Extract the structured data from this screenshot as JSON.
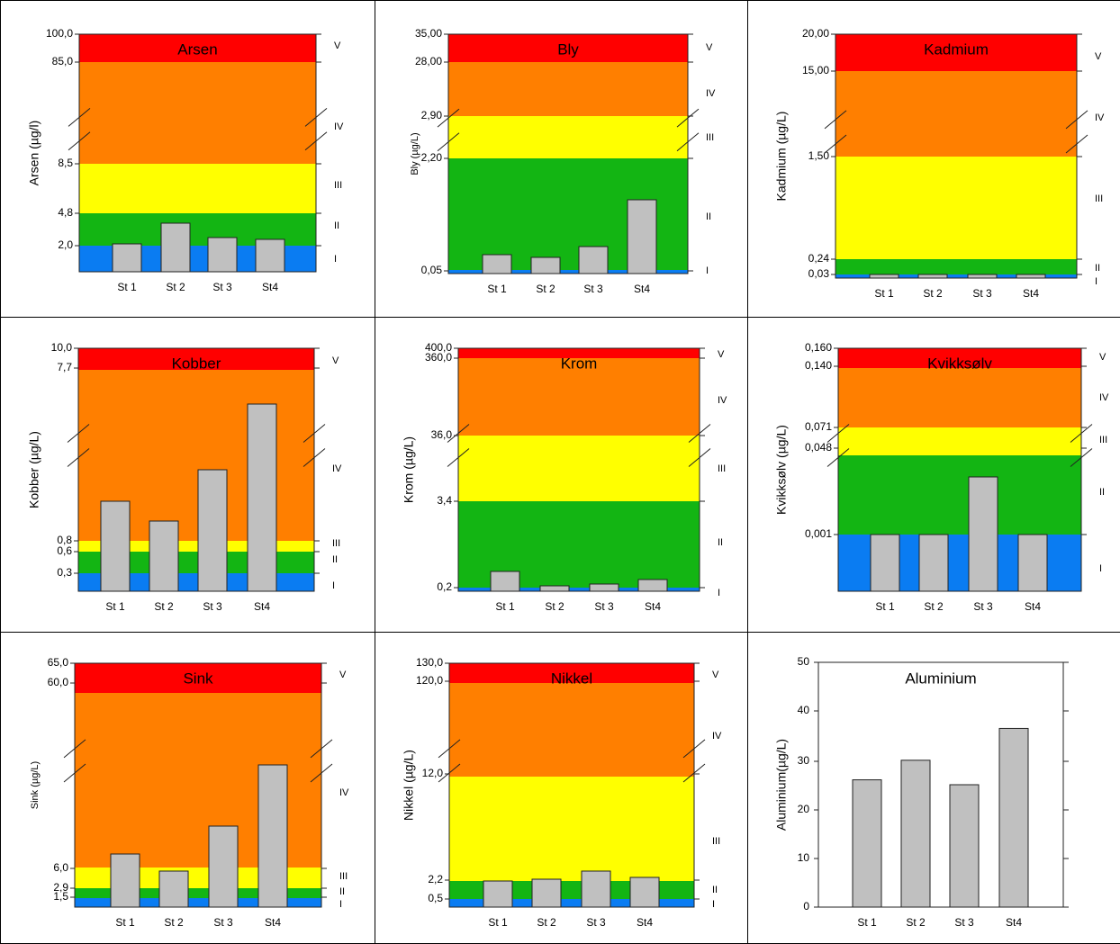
{
  "colors": {
    "I": "#0a7cf2",
    "II": "#13b513",
    "III": "#ffff00",
    "IV": "#ff7f00",
    "V": "#ff0000",
    "bar": "#c0c0c0",
    "bar_stroke": "#222222"
  },
  "categories": [
    "St 1",
    "St 2",
    "St 3",
    "St4"
  ],
  "chart_data": [
    {
      "type": "bar",
      "title": "Arsen",
      "ylabel": "Arsen (µg/l)",
      "categories": [
        "St 1",
        "St 2",
        "St 3",
        "St4"
      ],
      "ticks": [
        "100,0",
        "85,0",
        "8,5",
        "4,8",
        "2,0"
      ],
      "classes": [
        "V",
        "IV",
        "III",
        "II",
        "I"
      ],
      "class_limits": {
        "I": [
          0,
          2.0
        ],
        "II": [
          2.0,
          4.8
        ],
        "III": [
          4.8,
          8.5
        ],
        "IV": [
          8.5,
          85.0
        ],
        "V": [
          85.0,
          100.0
        ]
      },
      "values": [
        2.2,
        3.8,
        2.7,
        2.5
      ],
      "axis_breaks": true
    },
    {
      "type": "bar",
      "title": "Bly",
      "ylabel": "Bly (µg/L)",
      "categories": [
        "St 1",
        "St 2",
        "St 3",
        "St4"
      ],
      "ticks": [
        "35,00",
        "28,00",
        "2,90",
        "2,20",
        "0,05"
      ],
      "classes": [
        "V",
        "IV",
        "III",
        "II",
        "I"
      ],
      "class_limits": {
        "I": [
          0,
          0.05
        ],
        "II": [
          0.05,
          2.2
        ],
        "III": [
          2.2,
          2.9
        ],
        "IV": [
          2.9,
          28.0
        ],
        "V": [
          28.0,
          35.0
        ]
      },
      "values": [
        0.34,
        0.3,
        0.45,
        1.17
      ],
      "axis_breaks": true
    },
    {
      "type": "bar",
      "title": "Kadmium",
      "ylabel": "Kadmium (µg/L)",
      "categories": [
        "St 1",
        "St 2",
        "St 3",
        "St4"
      ],
      "ticks": [
        "20,00",
        "15,00",
        "1,50",
        "0,24",
        "0,03"
      ],
      "classes": [
        "V",
        "IV",
        "III",
        "II",
        "I"
      ],
      "class_limits": {
        "I": [
          0,
          0.03
        ],
        "II": [
          0.03,
          0.24
        ],
        "III": [
          0.24,
          1.5
        ],
        "IV": [
          1.5,
          15.0
        ],
        "V": [
          15.0,
          20.0
        ]
      },
      "values": [
        0.03,
        0.03,
        0.03,
        0.03
      ],
      "axis_breaks": true
    },
    {
      "type": "bar",
      "title": "Kobber",
      "ylabel": "Kobber (µg/L)",
      "categories": [
        "St 1",
        "St 2",
        "St 3",
        "St4"
      ],
      "ticks": [
        "10,0",
        "7,7",
        "0,8",
        "0,6",
        "0,3"
      ],
      "classes": [
        "V",
        "IV",
        "III",
        "II",
        "I"
      ],
      "class_limits": {
        "I": [
          0,
          0.3
        ],
        "II": [
          0.3,
          0.6
        ],
        "III": [
          0.6,
          0.8
        ],
        "IV": [
          0.8,
          7.7
        ],
        "V": [
          7.7,
          10.0
        ]
      },
      "values": [
        2.6,
        2.0,
        3.5,
        5.5
      ],
      "axis_breaks": true
    },
    {
      "type": "bar",
      "title": "Krom",
      "ylabel": "Krom (µg/L)",
      "categories": [
        "St 1",
        "St 2",
        "St 3",
        "St4"
      ],
      "ticks": [
        "400,0",
        "360,0",
        "36,0",
        "3,4",
        "0,2"
      ],
      "classes": [
        "V",
        "IV",
        "III",
        "II",
        "I"
      ],
      "class_limits": {
        "I": [
          0,
          0.2
        ],
        "II": [
          0.2,
          3.4
        ],
        "III": [
          3.4,
          36.0
        ],
        "IV": [
          36.0,
          360.0
        ],
        "V": [
          360.0,
          400.0
        ]
      },
      "values": [
        0.5,
        0.25,
        0.3,
        0.4
      ],
      "axis_breaks": true
    },
    {
      "type": "bar",
      "title": "Kvikksølv",
      "ylabel": "Kvikksølv (µg/L)",
      "categories": [
        "St 1",
        "St 2",
        "St 3",
        "St4"
      ],
      "ticks": [
        "0,160",
        "0,140",
        "0,071",
        "0,048",
        "0,001"
      ],
      "classes": [
        "V",
        "IV",
        "III",
        "II",
        "I"
      ],
      "class_limits": {
        "I": [
          0,
          0.001
        ],
        "II": [
          0.001,
          0.048
        ],
        "III": [
          0.048,
          0.071
        ],
        "IV": [
          0.071,
          0.14
        ],
        "V": [
          0.14,
          0.16
        ]
      },
      "values": [
        0.001,
        0.001,
        0.01,
        0.001
      ],
      "axis_breaks": true
    },
    {
      "type": "bar",
      "title": "Sink",
      "ylabel": "Sink (µg/L)",
      "categories": [
        "St 1",
        "St 2",
        "St 3",
        "St4"
      ],
      "ticks": [
        "65,0",
        "60,0",
        "6,0",
        "2,9",
        "1,5"
      ],
      "classes": [
        "V",
        "IV",
        "III",
        "II",
        "I"
      ],
      "class_limits": {
        "I": [
          0,
          1.5
        ],
        "II": [
          1.5,
          2.9
        ],
        "III": [
          2.9,
          6.0
        ],
        "IV": [
          6.0,
          60.0
        ],
        "V": [
          60.0,
          65.0
        ]
      },
      "values": [
        8,
        5.5,
        12,
        20
      ],
      "axis_breaks": true
    },
    {
      "type": "bar",
      "title": "Nikkel",
      "ylabel": "Nikkel (µg/L)",
      "categories": [
        "St 1",
        "St 2",
        "St 3",
        "St4"
      ],
      "ticks": [
        "130,0",
        "120,0",
        "12,0",
        "2,2",
        "0,5"
      ],
      "classes": [
        "V",
        "IV",
        "III",
        "II",
        "I"
      ],
      "class_limits": {
        "I": [
          0,
          0.5
        ],
        "II": [
          0.5,
          2.2
        ],
        "III": [
          2.2,
          12.0
        ],
        "IV": [
          12.0,
          120.0
        ],
        "V": [
          120.0,
          130.0
        ]
      },
      "values": [
        2.1,
        2.3,
        2.8,
        2.4
      ],
      "axis_breaks": true
    },
    {
      "type": "bar",
      "title": "Aluminium",
      "ylabel": "Aluminium(µg/L)",
      "categories": [
        "St 1",
        "St 2",
        "St 3",
        "St4"
      ],
      "ticks": [
        "0",
        "10",
        "20",
        "30",
        "40",
        "50"
      ],
      "ylim": [
        0,
        50
      ],
      "values": [
        26,
        30,
        25,
        36.5
      ]
    }
  ]
}
